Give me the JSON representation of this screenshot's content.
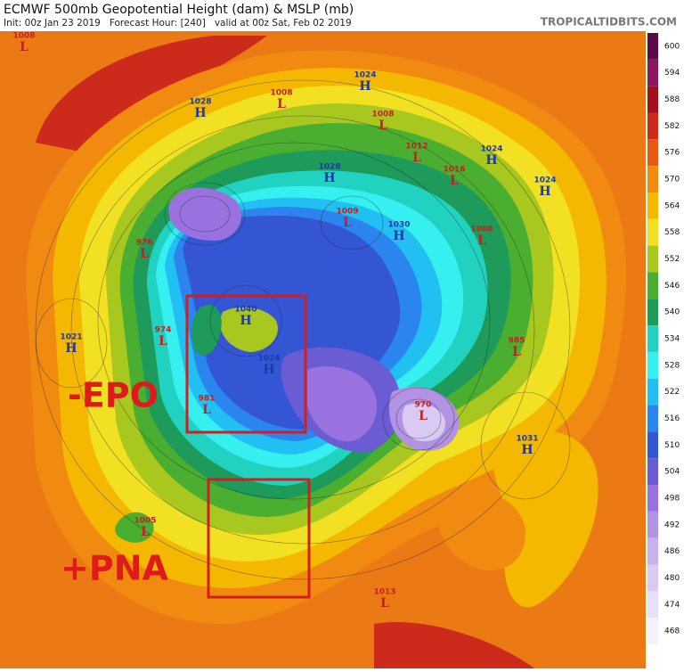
{
  "header": {
    "title": "ECMWF 500mb Geopotential Height (dam) & MSLP (mb)",
    "subtitle": "Init: 00z Jan 23 2019   Forecast Hour: [240]   valid at 00z Sat, Feb 02 2019",
    "brand": "TROPICALTIDBITS.COM"
  },
  "colorbar": {
    "labels": [
      600,
      594,
      588,
      582,
      576,
      570,
      564,
      558,
      552,
      546,
      540,
      534,
      528,
      522,
      516,
      510,
      504,
      498,
      492,
      486,
      480,
      474,
      468
    ],
    "colors": [
      "#5a0a4a",
      "#8a1860",
      "#a01018",
      "#cc2a1a",
      "#e85a12",
      "#f08a10",
      "#f5b800",
      "#f2e022",
      "#a8c820",
      "#4aae30",
      "#1e9a5a",
      "#22d2c0",
      "#36f0f0",
      "#22c0f2",
      "#2a86ee",
      "#3456d4",
      "#6a5cd2",
      "#9a72e0",
      "#b292e2",
      "#c8b2ea",
      "#d8caf2",
      "#e8e0f8",
      "#f4f2ff"
    ]
  },
  "pressure_centers": [
    {
      "value": "1008",
      "kind": "L",
      "color": "#c81e1e"
    },
    {
      "value": "1028",
      "kind": "H",
      "color": "#1a3aa8"
    },
    {
      "value": "1008",
      "kind": "L",
      "color": "#c81e1e"
    },
    {
      "value": "1024",
      "kind": "H",
      "color": "#1a3aa8"
    },
    {
      "value": "1008",
      "kind": "L",
      "color": "#c81e1e"
    },
    {
      "value": "1012",
      "kind": "L",
      "color": "#c81e1e"
    },
    {
      "value": "1016",
      "kind": "L",
      "color": "#c81e1e"
    },
    {
      "value": "1024",
      "kind": "H",
      "color": "#1a3aa8"
    },
    {
      "value": "1024",
      "kind": "H",
      "color": "#1a3aa8"
    },
    {
      "value": "1028",
      "kind": "H",
      "color": "#1a3aa8"
    },
    {
      "value": "1009",
      "kind": "L",
      "color": "#c81e1e"
    },
    {
      "value": "1030",
      "kind": "H",
      "color": "#1a3aa8"
    },
    {
      "value": "1008",
      "kind": "L",
      "color": "#c81e1e"
    },
    {
      "value": "976",
      "kind": "L",
      "color": "#c81e1e"
    },
    {
      "value": "1040",
      "kind": "H",
      "color": "#1a3aa8"
    },
    {
      "value": "974",
      "kind": "L",
      "color": "#c81e1e"
    },
    {
      "value": "1021",
      "kind": "H",
      "color": "#1a3aa8"
    },
    {
      "value": "1024",
      "kind": "H",
      "color": "#1a3aa8"
    },
    {
      "value": "985",
      "kind": "L",
      "color": "#c81e1e"
    },
    {
      "value": "981",
      "kind": "L",
      "color": "#c81e1e"
    },
    {
      "value": "970",
      "kind": "L",
      "color": "#c81e1e"
    },
    {
      "value": "1031",
      "kind": "H",
      "color": "#1a3aa8"
    },
    {
      "value": "1005",
      "kind": "L",
      "color": "#c81e1e"
    },
    {
      "value": "1013",
      "kind": "L",
      "color": "#c81e1e"
    }
  ],
  "annotations": [
    "-EPO",
    "+PNA"
  ]
}
